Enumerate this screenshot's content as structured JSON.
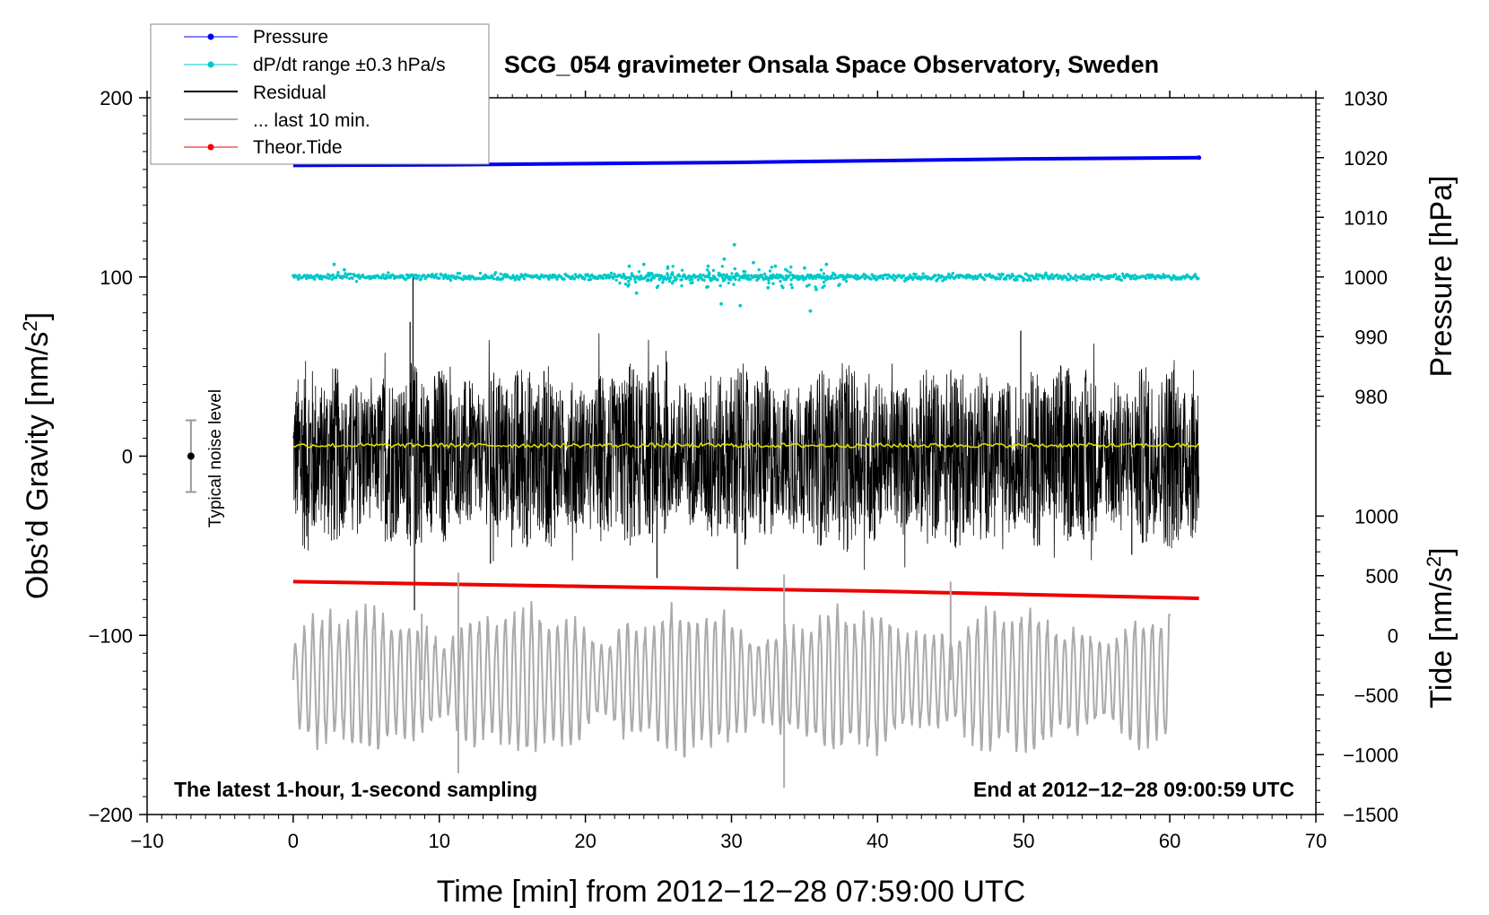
{
  "chart_data": {
    "type": "line",
    "title": "SCG_054 gravimeter Onsala Space Observatory, Sweden",
    "xlabel": "Time [min] from 2012−12−28 07:59:00 UTC",
    "ylabel_left": "Obs’d Gravity [nm/s",
    "ylabel_left_sup": "2",
    "ylabel_left_close": "]",
    "ylabel_right_top": "Pressure [hPa]",
    "ylabel_right_bottom": "Tide [nm/s",
    "ylabel_right_bottom_sup": "2",
    "ylabel_right_bottom_close": "]",
    "xlim": [
      -10,
      70
    ],
    "ylim": [
      -200,
      200
    ],
    "x_ticks": [
      -10,
      0,
      10,
      20,
      30,
      40,
      50,
      60,
      70
    ],
    "x_tick_labels": [
      "−10",
      "0",
      "10",
      "20",
      "30",
      "40",
      "50",
      "60",
      "70"
    ],
    "y_ticks": [
      -200,
      -100,
      0,
      100,
      200
    ],
    "y_tick_labels": [
      "−200",
      "−100",
      "0",
      "100",
      "200"
    ],
    "pressure_axis": {
      "range": [
        970,
        1030
      ],
      "ticks": [
        980,
        990,
        1000,
        1010,
        1020,
        1030
      ],
      "tick_labels": [
        "980",
        "990",
        "1000",
        "1010",
        "1020",
        "1030"
      ]
    },
    "tide_axis": {
      "range": [
        -1500,
        1500
      ],
      "ticks": [
        -1500,
        -1000,
        -500,
        0,
        500,
        1000
      ],
      "tick_labels": [
        "−1500",
        "−1000",
        "−500",
        "0",
        "500",
        "1000"
      ]
    },
    "noise_indicator": {
      "label": "Typical noise level",
      "x": -7.0,
      "center": 0,
      "half_range": 20
    },
    "annotations": {
      "bottom_left": "The latest 1-hour, 1-second sampling",
      "bottom_right": "End at 2012−12−28 09:00:59 UTC"
    },
    "legend": {
      "position": "top-left",
      "entries": [
        {
          "label": "Pressure",
          "color": "#0000ee",
          "style": "line-dot"
        },
        {
          "label": "dP/dt range ±0.3 hPa/s",
          "color": "#00c8c8",
          "style": "line-dot"
        },
        {
          "label": "Residual",
          "color": "#000000",
          "style": "line"
        },
        {
          "label": "... last 10 min.",
          "color": "#aaaaaa",
          "style": "line"
        },
        {
          "label": "Theor.Tide",
          "color": "#ee0000",
          "style": "line-dot"
        }
      ]
    },
    "series": [
      {
        "name": "Pressure",
        "axis": "pressure",
        "color": "#0000ee",
        "x": [
          0,
          10,
          20,
          30,
          40,
          50,
          62
        ],
        "values": [
          1018.7,
          1018.8,
          1019.0,
          1019.2,
          1019.5,
          1019.8,
          1020.0
        ]
      },
      {
        "name": "dP/dt range ±0.3 hPa/s",
        "axis": "gravity",
        "color": "#00c8c8",
        "x_range": [
          0,
          62
        ],
        "baseline": 100,
        "outliers": [
          {
            "x": 2.8,
            "y": 107
          },
          {
            "x": 3.5,
            "y": 104
          },
          {
            "x": 23.0,
            "y": 106
          },
          {
            "x": 23.5,
            "y": 91
          },
          {
            "x": 29.5,
            "y": 110
          },
          {
            "x": 30.2,
            "y": 118
          },
          {
            "x": 29.3,
            "y": 85
          },
          {
            "x": 30.6,
            "y": 84
          },
          {
            "x": 31.5,
            "y": 108
          },
          {
            "x": 33.0,
            "y": 106
          },
          {
            "x": 35.4,
            "y": 81
          },
          {
            "x": 35.0,
            "y": 105
          },
          {
            "x": 35.8,
            "y": 93
          },
          {
            "x": 28.4,
            "y": 106
          },
          {
            "x": 32.5,
            "y": 94
          },
          {
            "x": 24.0,
            "y": 107
          },
          {
            "x": 36.5,
            "y": 107
          }
        ]
      },
      {
        "name": "Residual",
        "axis": "gravity",
        "color": "#000000",
        "x_range": [
          0,
          62
        ],
        "baseline": 0,
        "spikes": [
          {
            "x": 8.2,
            "y": 100
          },
          {
            "x": 8.3,
            "y": -86
          },
          {
            "x": 8.0,
            "y": 75
          },
          {
            "x": 13.5,
            "y": -60
          },
          {
            "x": 24.9,
            "y": -68
          },
          {
            "x": 30.4,
            "y": -63
          },
          {
            "x": 49.8,
            "y": 70
          },
          {
            "x": 57.4,
            "y": -55
          }
        ]
      },
      {
        "name": "Residual smoothed",
        "axis": "gravity",
        "color": "#dcdc00",
        "x_range": [
          0,
          62
        ],
        "values_mean": 6
      },
      {
        "name": "Theor.Tide",
        "axis": "tide",
        "color": "#ee0000",
        "x": [
          0,
          20,
          40,
          62
        ],
        "values": [
          450,
          410,
          370,
          310
        ]
      },
      {
        "name": "... last 10 min.",
        "axis": "gravity",
        "color": "#aaaaaa",
        "x_range": [
          0,
          60
        ],
        "baseline": -125,
        "extremes": [
          {
            "x": 11.3,
            "y": -177
          },
          {
            "x": 11.3,
            "y": -65
          },
          {
            "x": 33.6,
            "y": -185
          },
          {
            "x": 33.6,
            "y": -66
          },
          {
            "x": 8.8,
            "y": -88
          },
          {
            "x": 45.0,
            "y": -70
          }
        ]
      }
    ]
  }
}
